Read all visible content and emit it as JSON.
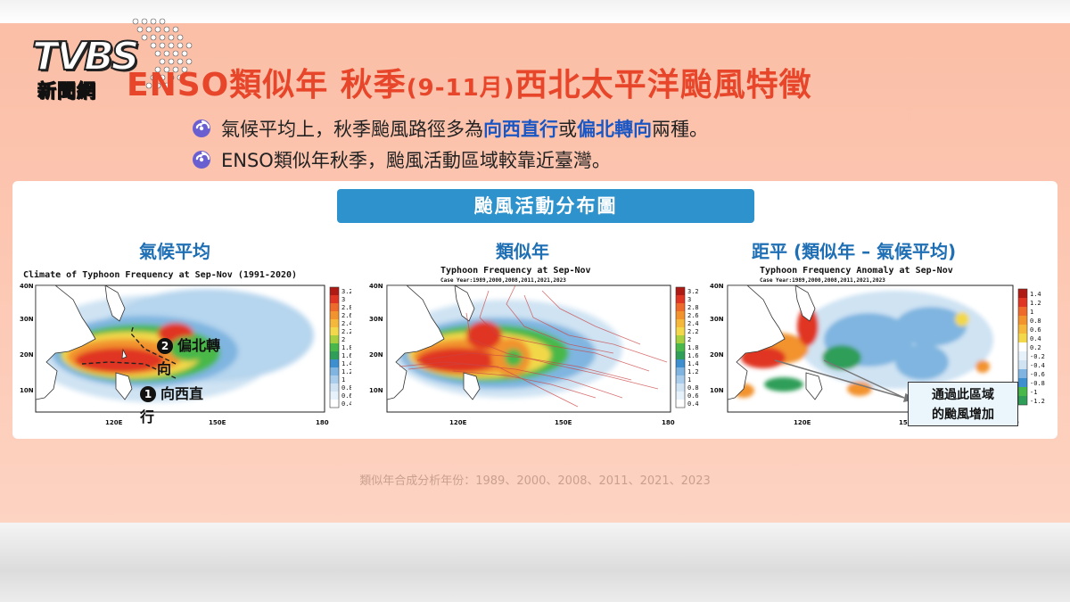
{
  "logo": {
    "brand": "TVBS",
    "sub": "新聞網"
  },
  "title": {
    "main": "ENSO類似年 秋季",
    "paren": "(9-11月)",
    "rest": "西北太平洋颱風特徵"
  },
  "bullets": [
    {
      "pre": "氣候平均上，秋季颱風路徑多為",
      "hl1": "向西直行",
      "mid": "或",
      "hl2": "偏北轉向",
      "post": "兩種。"
    },
    {
      "text": "ENSO類似年秋季，颱風活動區域較靠近臺灣。"
    }
  ],
  "banner": "颱風活動分布圖",
  "panels": [
    {
      "title": "氣候平均",
      "map_title": "Climate of Typhoon Frequency at Sep-Nov (1991-2020)",
      "map_subtitle": "",
      "colorbar": [
        "3.2",
        "3",
        "2.8",
        "2.6",
        "2.4",
        "2.2",
        "2",
        "1.8",
        "1.6",
        "1.4",
        "1.2",
        "1",
        "0.8",
        "0.6",
        "0.4"
      ]
    },
    {
      "title": "類似年",
      "map_title": "Typhoon Frequency at Sep-Nov",
      "map_subtitle": "Case Year:1989,2000,2008,2011,2021,2023",
      "colorbar": [
        "3.2",
        "3",
        "2.8",
        "2.6",
        "2.4",
        "2.2",
        "2",
        "1.8",
        "1.6",
        "1.4",
        "1.2",
        "1",
        "0.8",
        "0.6",
        "0.4"
      ]
    },
    {
      "title": "距平 (類似年 – 氣候平均)",
      "map_title": "Typhoon Frequency Anomaly at Sep-Nov",
      "map_subtitle": "Case Year:1989,2000,2008,2011,2021,2023",
      "colorbar": [
        "1.4",
        "1.2",
        "1",
        "0.8",
        "0.6",
        "0.4",
        "0.2",
        "-0.2",
        "-0.4",
        "-0.6",
        "-0.8",
        "-1",
        "-1.2"
      ]
    }
  ],
  "axes": {
    "lat": [
      "40N",
      "30N",
      "20N",
      "10N"
    ],
    "lon": [
      "120E",
      "150E",
      "180"
    ]
  },
  "annotations": {
    "n2": "2",
    "a2a": "偏北轉",
    "a2b": "向",
    "n1": "1",
    "a1a": "向西直",
    "a1b": "行"
  },
  "callout": {
    "line1": "通過此區域",
    "line2": "的颱風增加"
  },
  "footer": "類似年合成分析年份：1989、2000、2008、2011、2021、2023",
  "colors": {
    "title": "#e8462a",
    "accent": "#1a56c4",
    "banner": "#2e92cc",
    "panel_title": "#1f6fb5",
    "background": "#fbbea6"
  }
}
